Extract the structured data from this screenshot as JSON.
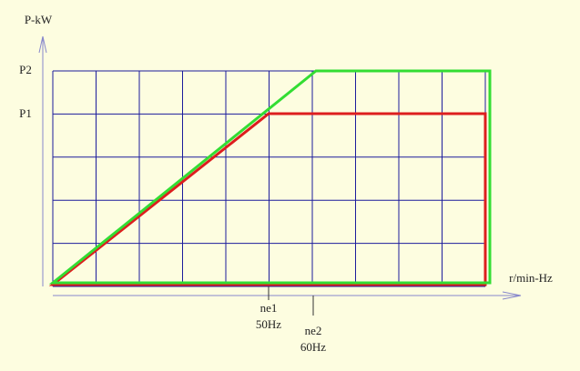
{
  "axes": {
    "y_label": "P-kW",
    "x_label": "r/min-Hz"
  },
  "y_ticks": [
    "P2",
    "P1"
  ],
  "x_ticks": [
    {
      "name": "ne1",
      "freq": "50Hz"
    },
    {
      "name": "ne2",
      "freq": "60Hz"
    }
  ]
}
